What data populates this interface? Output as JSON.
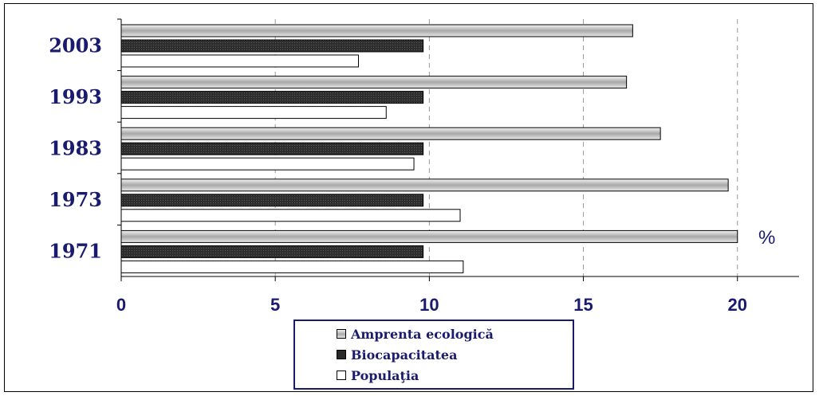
{
  "chart_data": {
    "type": "bar",
    "orientation": "horizontal",
    "categories": [
      "2003",
      "1993",
      "1983",
      "1973",
      "1971"
    ],
    "series": [
      {
        "name": "Amprenta ecologică",
        "values": [
          16.6,
          16.4,
          17.5,
          19.7,
          20.0
        ],
        "color": "#b8b8b8"
      },
      {
        "name": "Biocapacitatea",
        "values": [
          9.8,
          9.8,
          9.8,
          9.8,
          9.8
        ],
        "color": "#2a2a2a"
      },
      {
        "name": "Populaţia",
        "values": [
          7.7,
          8.6,
          9.5,
          11.0,
          11.1
        ],
        "color": "#ffffff"
      }
    ],
    "xlim": [
      0,
      22
    ],
    "xticks": [
      "0",
      "5",
      "10",
      "15",
      "20"
    ],
    "unit_label": "%",
    "grid": "vertical dashed",
    "legend_position": "bottom-center"
  },
  "legend": {
    "items": [
      {
        "label": "Amprenta ecologică"
      },
      {
        "label": "Biocapacitatea"
      },
      {
        "label": "Populaţia"
      }
    ]
  }
}
